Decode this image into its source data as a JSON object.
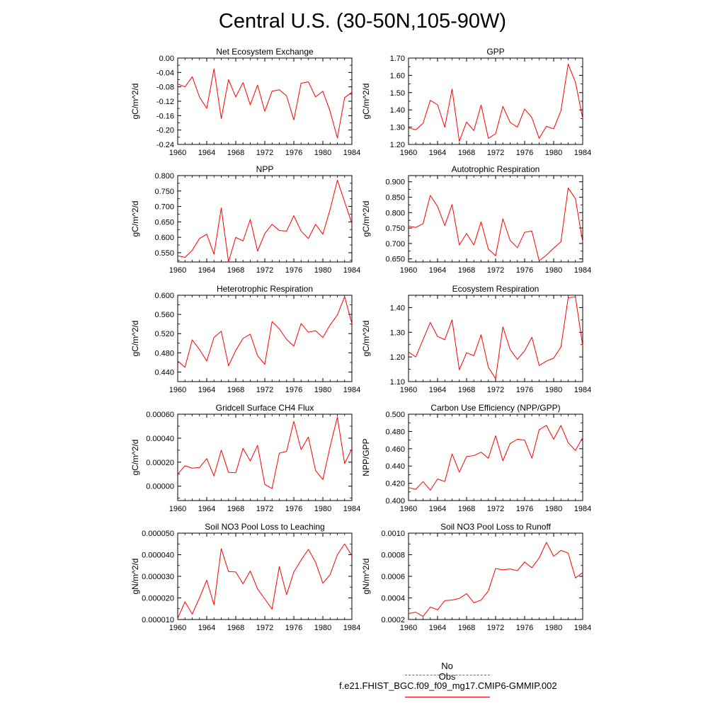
{
  "title": "Central U.S. (30-50N,105-90W)",
  "legend": {
    "obs_label": "No Obs",
    "obs_color": "#5555ff",
    "model_label": "f.e21.FHIST_BGC.f09_f09_mg17.CMIP6-GMMIP.002",
    "model_color": "#ff0000"
  },
  "chart_data": [
    {
      "type": "line",
      "title": "Net Ecosystem Exchange",
      "xlabel": "",
      "ylabel": "gC/m^2/d",
      "x": [
        1960,
        1961,
        1962,
        1963,
        1964,
        1965,
        1966,
        1967,
        1968,
        1969,
        1970,
        1971,
        1972,
        1973,
        1974,
        1975,
        1976,
        1977,
        1978,
        1979,
        1980,
        1981,
        1982,
        1983,
        1984
      ],
      "xlim": [
        1960,
        1984
      ],
      "xticks": [
        "1960",
        "1964",
        "1968",
        "1972",
        "1976",
        "1980",
        "1984"
      ],
      "ylim": [
        -0.24,
        0.0
      ],
      "yticks": [
        "0.00",
        "-0.04",
        "-0.08",
        "-0.12",
        "-0.16",
        "-0.20",
        "-0.24"
      ],
      "series": [
        {
          "color": "#ff0000",
          "values": [
            -0.072,
            -0.08,
            -0.052,
            -0.108,
            -0.14,
            -0.03,
            -0.168,
            -0.06,
            -0.108,
            -0.068,
            -0.13,
            -0.075,
            -0.148,
            -0.092,
            -0.088,
            -0.105,
            -0.172,
            -0.07,
            -0.066,
            -0.108,
            -0.092,
            -0.148,
            -0.222,
            -0.11,
            -0.095
          ]
        }
      ]
    },
    {
      "type": "line",
      "title": "GPP",
      "xlabel": "",
      "ylabel": "gC/m^2/d",
      "x": [
        1960,
        1961,
        1962,
        1963,
        1964,
        1965,
        1966,
        1967,
        1968,
        1969,
        1970,
        1971,
        1972,
        1973,
        1974,
        1975,
        1976,
        1977,
        1978,
        1979,
        1980,
        1981,
        1982,
        1983,
        1984
      ],
      "xlim": [
        1960,
        1984
      ],
      "xticks": [
        "1960",
        "1964",
        "1968",
        "1972",
        "1976",
        "1980",
        "1984"
      ],
      "ylim": [
        1.2,
        1.7
      ],
      "yticks": [
        "1.70",
        "1.60",
        "1.50",
        "1.40",
        "1.30",
        "1.20"
      ],
      "series": [
        {
          "color": "#ff0000",
          "values": [
            1.295,
            1.285,
            1.322,
            1.455,
            1.43,
            1.3,
            1.52,
            1.218,
            1.33,
            1.28,
            1.428,
            1.235,
            1.262,
            1.42,
            1.328,
            1.3,
            1.405,
            1.355,
            1.235,
            1.305,
            1.29,
            1.395,
            1.665,
            1.56,
            1.35
          ]
        }
      ]
    },
    {
      "type": "line",
      "title": "NPP",
      "xlabel": "",
      "ylabel": "gC/m^2/d",
      "x": [
        1960,
        1961,
        1962,
        1963,
        1964,
        1965,
        1966,
        1967,
        1968,
        1969,
        1970,
        1971,
        1972,
        1973,
        1974,
        1975,
        1976,
        1977,
        1978,
        1979,
        1980,
        1981,
        1982,
        1983,
        1984
      ],
      "xlim": [
        1960,
        1984
      ],
      "xticks": [
        "1960",
        "1964",
        "1968",
        "1972",
        "1976",
        "1980",
        "1984"
      ],
      "ylim": [
        0.52,
        0.8
      ],
      "yticks": [
        "0.800",
        "0.750",
        "0.700",
        "0.650",
        "0.600",
        "0.550"
      ],
      "series": [
        {
          "color": "#ff0000",
          "values": [
            0.54,
            0.535,
            0.558,
            0.596,
            0.61,
            0.545,
            0.695,
            0.52,
            0.6,
            0.588,
            0.658,
            0.555,
            0.612,
            0.642,
            0.622,
            0.62,
            0.67,
            0.62,
            0.596,
            0.642,
            0.61,
            0.69,
            0.785,
            0.715,
            0.645
          ]
        }
      ]
    },
    {
      "type": "line",
      "title": "Autotrophic Respiration",
      "xlabel": "",
      "ylabel": "gC/m^2/d",
      "x": [
        1960,
        1961,
        1962,
        1963,
        1964,
        1965,
        1966,
        1967,
        1968,
        1969,
        1970,
        1971,
        1972,
        1973,
        1974,
        1975,
        1976,
        1977,
        1978,
        1979,
        1980,
        1981,
        1982,
        1983,
        1984
      ],
      "xlim": [
        1960,
        1984
      ],
      "xticks": [
        "1960",
        "1964",
        "1968",
        "1972",
        "1976",
        "1980",
        "1984"
      ],
      "ylim": [
        0.64,
        0.92
      ],
      "yticks": [
        "0.900",
        "0.850",
        "0.800",
        "0.750",
        "0.700",
        "0.650"
      ],
      "series": [
        {
          "color": "#ff0000",
          "values": [
            0.756,
            0.752,
            0.764,
            0.856,
            0.82,
            0.758,
            0.826,
            0.695,
            0.732,
            0.695,
            0.77,
            0.682,
            0.66,
            0.78,
            0.71,
            0.686,
            0.736,
            0.74,
            0.644,
            0.662,
            0.685,
            0.705,
            0.88,
            0.845,
            0.705
          ]
        }
      ]
    },
    {
      "type": "line",
      "title": "Heterotrophic Respiration",
      "xlabel": "",
      "ylabel": "gC/m^2/d",
      "x": [
        1960,
        1961,
        1962,
        1963,
        1964,
        1965,
        1966,
        1967,
        1968,
        1969,
        1970,
        1971,
        1972,
        1973,
        1974,
        1975,
        1976,
        1977,
        1978,
        1979,
        1980,
        1981,
        1982,
        1983,
        1984
      ],
      "xlim": [
        1960,
        1984
      ],
      "xticks": [
        "1960",
        "1964",
        "1968",
        "1972",
        "1976",
        "1980",
        "1984"
      ],
      "ylim": [
        0.42,
        0.6
      ],
      "yticks": [
        "0.600",
        "0.560",
        "0.520",
        "0.480",
        "0.440"
      ],
      "series": [
        {
          "color": "#ff0000",
          "values": [
            0.463,
            0.45,
            0.507,
            0.487,
            0.463,
            0.512,
            0.525,
            0.453,
            0.485,
            0.51,
            0.519,
            0.474,
            0.456,
            0.545,
            0.53,
            0.508,
            0.494,
            0.541,
            0.523,
            0.526,
            0.512,
            0.538,
            0.559,
            0.597,
            0.541
          ]
        }
      ]
    },
    {
      "type": "line",
      "title": "Ecosystem Respiration",
      "xlabel": "",
      "ylabel": "gC/m^2/d",
      "x": [
        1960,
        1961,
        1962,
        1963,
        1964,
        1965,
        1966,
        1967,
        1968,
        1969,
        1970,
        1971,
        1972,
        1973,
        1974,
        1975,
        1976,
        1977,
        1978,
        1979,
        1980,
        1981,
        1982,
        1983,
        1984
      ],
      "xlim": [
        1960,
        1984
      ],
      "xticks": [
        "1960",
        "1964",
        "1968",
        "1972",
        "1976",
        "1980",
        "1984"
      ],
      "ylim": [
        1.1,
        1.45
      ],
      "yticks": [
        "1.40",
        "1.30",
        "1.20",
        "1.10"
      ],
      "series": [
        {
          "color": "#ff0000",
          "values": [
            1.22,
            1.2,
            1.27,
            1.34,
            1.283,
            1.27,
            1.35,
            1.148,
            1.217,
            1.205,
            1.29,
            1.158,
            1.112,
            1.322,
            1.23,
            1.19,
            1.225,
            1.28,
            1.165,
            1.183,
            1.195,
            1.24,
            1.44,
            1.443,
            1.245
          ]
        }
      ]
    },
    {
      "type": "line",
      "title": "Gridcell Surface CH4 Flux",
      "xlabel": "",
      "ylabel": "gC/m^2/d",
      "x": [
        1960,
        1961,
        1962,
        1963,
        1964,
        1965,
        1966,
        1967,
        1968,
        1969,
        1970,
        1971,
        1972,
        1973,
        1974,
        1975,
        1976,
        1977,
        1978,
        1979,
        1980,
        1981,
        1982,
        1983,
        1984
      ],
      "xlim": [
        1960,
        1984
      ],
      "xticks": [
        "1960",
        "1964",
        "1968",
        "1972",
        "1976",
        "1980",
        "1984"
      ],
      "ylim": [
        -0.00012,
        0.0006
      ],
      "yticks": [
        "0.00060",
        "0.00040",
        "0.00020",
        "0.00000"
      ],
      "series": [
        {
          "color": "#ff0000",
          "values": [
            0.0001,
            0.00017,
            0.00015,
            0.000155,
            0.00023,
            8.5e-05,
            0.0003,
            0.000115,
            0.000112,
            0.000315,
            0.00021,
            0.00034,
            1.5e-05,
            -2e-05,
            0.000275,
            0.00029,
            0.00054,
            0.000305,
            0.00041,
            0.00013,
            5.5e-05,
            0.00033,
            0.000575,
            0.00019,
            0.00031
          ]
        }
      ]
    },
    {
      "type": "line",
      "title": "Carbon Use Efficiency (NPP/GPP)",
      "xlabel": "",
      "ylabel": "NPP/GPP",
      "x": [
        1960,
        1961,
        1962,
        1963,
        1964,
        1965,
        1966,
        1967,
        1968,
        1969,
        1970,
        1971,
        1972,
        1973,
        1974,
        1975,
        1976,
        1977,
        1978,
        1979,
        1980,
        1981,
        1982,
        1983,
        1984
      ],
      "xlim": [
        1960,
        1984
      ],
      "xticks": [
        "1960",
        "1964",
        "1968",
        "1972",
        "1976",
        "1980",
        "1984"
      ],
      "ylim": [
        0.4,
        0.5
      ],
      "yticks": [
        "0.500",
        "0.480",
        "0.460",
        "0.440",
        "0.420",
        "0.400"
      ],
      "series": [
        {
          "color": "#ff0000",
          "values": [
            0.415,
            0.413,
            0.422,
            0.412,
            0.425,
            0.422,
            0.454,
            0.433,
            0.451,
            0.452,
            0.456,
            0.449,
            0.475,
            0.446,
            0.466,
            0.471,
            0.47,
            0.449,
            0.482,
            0.487,
            0.471,
            0.487,
            0.467,
            0.458,
            0.473
          ]
        }
      ]
    },
    {
      "type": "line",
      "title": "Soil NO3 Pool Loss to Leaching",
      "xlabel": "",
      "ylabel": "gN/m^2/d",
      "x": [
        1960,
        1961,
        1962,
        1963,
        1964,
        1965,
        1966,
        1967,
        1968,
        1969,
        1970,
        1971,
        1972,
        1973,
        1974,
        1975,
        1976,
        1977,
        1978,
        1979,
        1980,
        1981,
        1982,
        1983,
        1984
      ],
      "xlim": [
        1960,
        1984
      ],
      "xticks": [
        "1960",
        "1964",
        "1968",
        "1972",
        "1976",
        "1980",
        "1984"
      ],
      "ylim": [
        1e-05,
        5e-05
      ],
      "yticks": [
        "0.000050",
        "0.000040",
        "0.000030",
        "0.000020",
        "0.000010"
      ],
      "series": [
        {
          "color": "#ff0000",
          "values": [
            1.05e-05,
            1.82e-05,
            1.25e-05,
            2e-05,
            2.82e-05,
            1.68e-05,
            4.28e-05,
            3.22e-05,
            3.2e-05,
            2.65e-05,
            3.25e-05,
            2.42e-05,
            1.95e-05,
            1.48e-05,
            3.45e-05,
            2.15e-05,
            3.2e-05,
            3.75e-05,
            4.25e-05,
            3.65e-05,
            2.68e-05,
            3.08e-05,
            4e-05,
            4.5e-05,
            3.95e-05
          ]
        }
      ]
    },
    {
      "type": "line",
      "title": "Soil NO3 Pool Loss to Runoff",
      "xlabel": "",
      "ylabel": "gN/m^2/d",
      "x": [
        1960,
        1961,
        1962,
        1963,
        1964,
        1965,
        1966,
        1967,
        1968,
        1969,
        1970,
        1971,
        1972,
        1973,
        1974,
        1975,
        1976,
        1977,
        1978,
        1979,
        1980,
        1981,
        1982,
        1983,
        1984
      ],
      "xlim": [
        1960,
        1984
      ],
      "xticks": [
        "1960",
        "1964",
        "1968",
        "1972",
        "1976",
        "1980",
        "1984"
      ],
      "ylim": [
        0.0002,
        0.001
      ],
      "yticks": [
        "0.0010",
        "0.0008",
        "0.0006",
        "0.0004",
        "0.0002"
      ],
      "series": [
        {
          "color": "#ff0000",
          "values": [
            0.000255,
            0.000268,
            0.000228,
            0.000315,
            0.00029,
            0.000375,
            0.00038,
            0.000395,
            0.00044,
            0.000355,
            0.00038,
            0.000465,
            0.000672,
            0.00066,
            0.000668,
            0.000652,
            0.000732,
            0.00068,
            0.00077,
            0.000915,
            0.000785,
            0.00084,
            0.000815,
            0.000585,
            0.000635
          ]
        }
      ]
    }
  ]
}
